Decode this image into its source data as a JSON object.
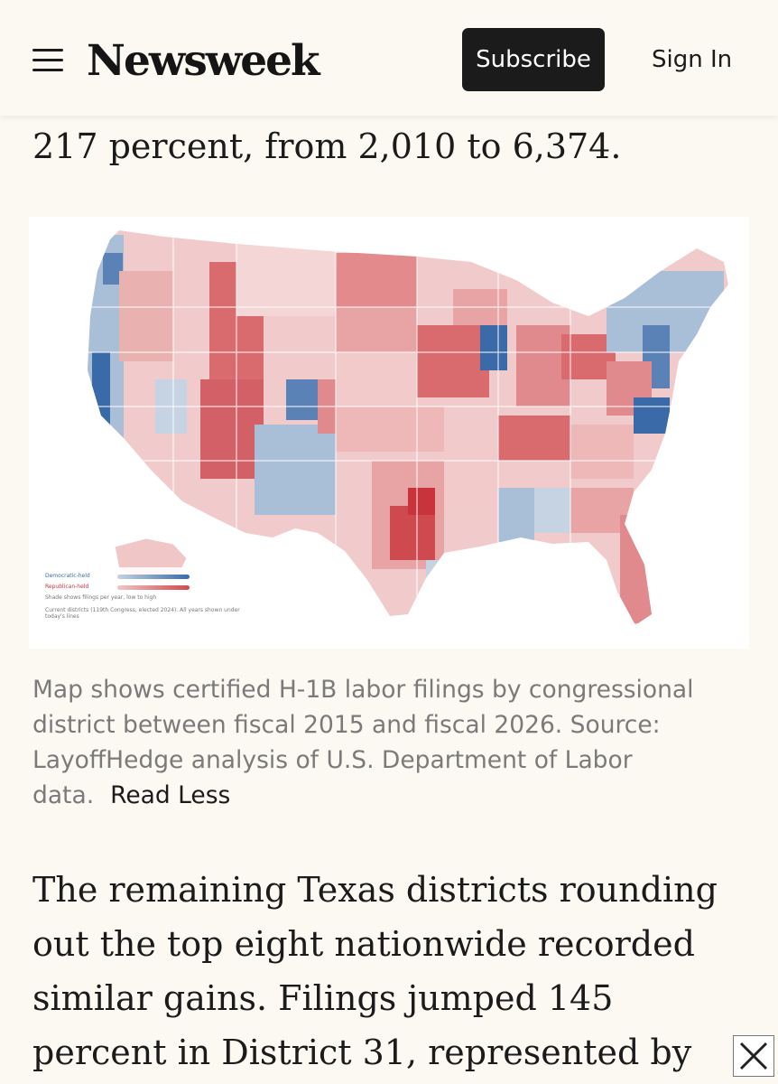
{
  "header": {
    "logo": "Newsweek",
    "subscribe_label": "Subscribe",
    "signin_label": "Sign In"
  },
  "article": {
    "lead_text": "217 percent, from 2,010 to 6,374.",
    "caption": "Map shows certified H-1B labor filings by congressional district between fiscal 2015 and fiscal 2026. Source: LayoffHedge analysis of U.S. Department of Labor data.",
    "read_less": "Read Less",
    "body": "The remaining Texas districts rounding out the top eight nationwide recorded similar gains. Filings jumped 145 percent in District 31, represented by"
  },
  "map": {
    "legend": {
      "democratic": "Democratic-held",
      "republican": "Republican-held",
      "shade_note": "Shade shows filings per year, low to high",
      "districts_note": "Current districts (119th Congress, elected 2024). All years shown under today's lines"
    },
    "colors": {
      "dem_light": "#c5d3e3",
      "dem_dark": "#3a6aa8",
      "rep_light": "#f0c6c6",
      "rep_dark": "#cf4a4f"
    }
  },
  "icons": {
    "menu": "hamburger-menu-icon",
    "close": "close-icon"
  }
}
